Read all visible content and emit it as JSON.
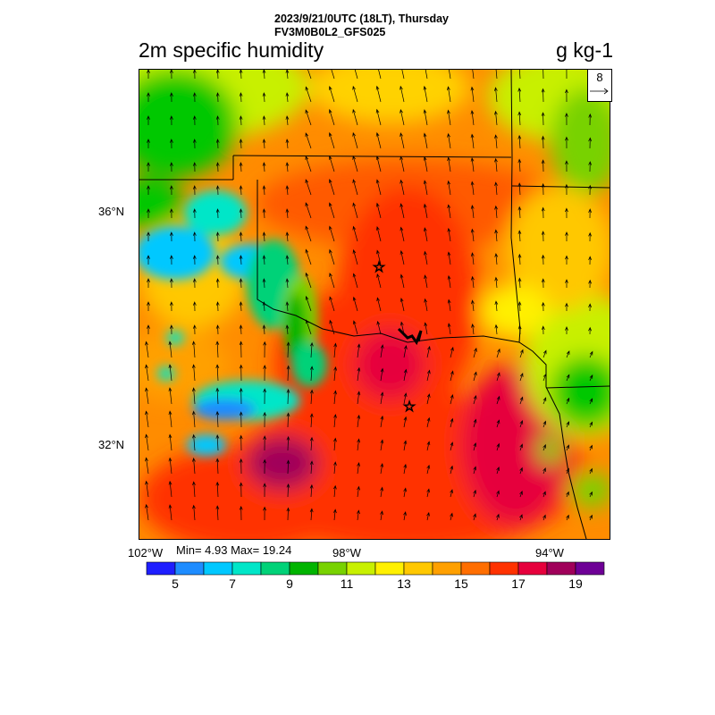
{
  "header": {
    "line1": "2023/9/21/0UTC (18LT), Thursday",
    "line2": "FV3M0B0L2_GFS025"
  },
  "title": {
    "left": "2m specific humidity",
    "right": "g kg-1"
  },
  "map": {
    "lat_labels": [
      "36°N",
      "32°N"
    ],
    "lon_labels": [
      "102°W",
      "98°W",
      "94°W"
    ],
    "markers": [
      "star",
      "star"
    ]
  },
  "stats": {
    "text": "Min= 4.93 Max= 19.24",
    "min": 4.93,
    "max": 19.24
  },
  "reference_vector": {
    "label": "8"
  },
  "colorbar": {
    "colors": [
      "#1e1eff",
      "#1e8cff",
      "#00c8ff",
      "#00e6c8",
      "#00d278",
      "#00b400",
      "#78d200",
      "#c8f000",
      "#fff000",
      "#ffc800",
      "#ffa000",
      "#ff6e00",
      "#ff3200",
      "#e6003c",
      "#a0005a",
      "#6e0096"
    ],
    "tick_labels": [
      "5",
      "7",
      "9",
      "11",
      "13",
      "15",
      "17",
      "19"
    ]
  },
  "colors": {
    "frame": "#000000",
    "background": "#ffffff"
  }
}
